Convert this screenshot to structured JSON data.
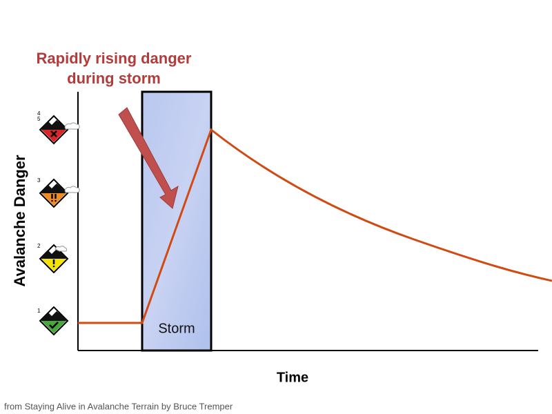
{
  "annotation": {
    "lines": [
      "Rapidly rising danger",
      "during storm"
    ]
  },
  "storm_label": "Storm",
  "y_axis_label": "Avalanche Danger",
  "x_axis_label": "Time",
  "danger_levels": [
    "1",
    "2",
    "3",
    "4",
    "5"
  ],
  "caption": "from Staying Alive in Avalanche Terrain by Bruce Tremper"
}
